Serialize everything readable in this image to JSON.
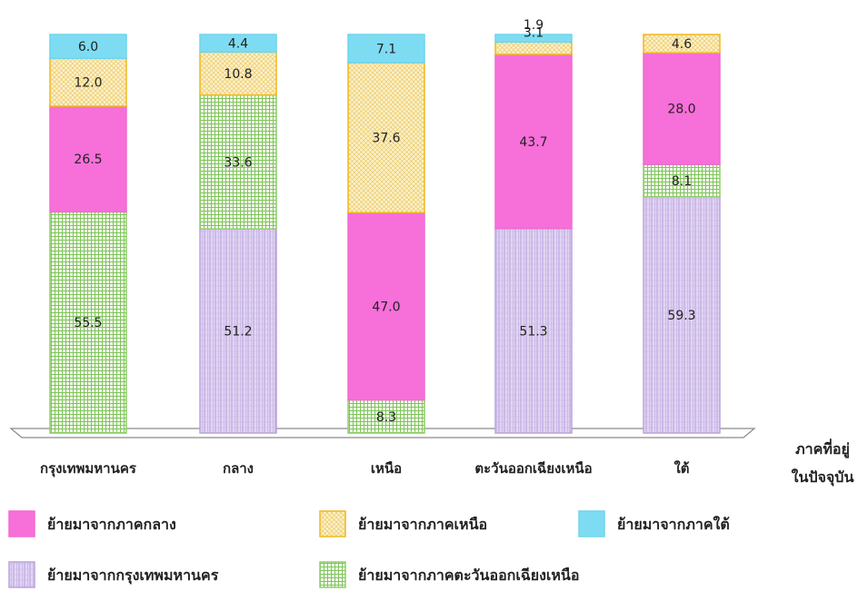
{
  "chart_data": {
    "type": "bar",
    "stacked": true,
    "categories": [
      "กรุงเทพมหานคร",
      "กลาง",
      "เหนือ",
      "ตะวันออกเฉียงเหนือ",
      "ใต้"
    ],
    "series": [
      {
        "name": "ย้ายมาจากกรุงเทพมหานคร",
        "key": "bkk",
        "color": "#d8c8ee",
        "values": [
          0,
          51.2,
          0,
          51.3,
          59.3
        ],
        "labels": [
          "",
          "51.2",
          "",
          "51.3",
          "59.3"
        ]
      },
      {
        "name": "ย้ายมาจากภาคตะวันออกเฉียงเหนือ",
        "key": "ne",
        "color": "#eef8e2",
        "values": [
          55.5,
          33.6,
          8.3,
          0,
          8.1
        ],
        "labels": [
          "55.5",
          "33.6",
          "8.3",
          "",
          "8.1"
        ]
      },
      {
        "name": "ย้ายมาจากภาคกลาง",
        "key": "central",
        "color": "#f76fd9",
        "values": [
          26.5,
          0,
          47.0,
          43.7,
          28.0
        ],
        "labels": [
          "26.5",
          "",
          "47.0",
          "43.7",
          "28.0"
        ]
      },
      {
        "name": "ย้ายมาจากภาคเหนือ",
        "key": "north",
        "color": "#fdf0bf",
        "values": [
          12.0,
          10.8,
          37.6,
          3.1,
          4.6
        ],
        "labels": [
          "12.0",
          "10.8",
          "37.6",
          "3.1",
          "4.6"
        ]
      },
      {
        "name": "ย้ายมาจากภาคใต้",
        "key": "south",
        "color": "#7edcf2",
        "values": [
          6.0,
          4.4,
          7.1,
          1.9,
          0
        ],
        "labels": [
          "6.0",
          "4.4",
          "7.1",
          "1.9",
          ""
        ]
      }
    ],
    "xlabel": [
      "ภาคที่อยู่",
      "ในปัจจุบัน"
    ],
    "ylabel": "",
    "ylim": [
      0,
      100
    ],
    "grid": false,
    "legend_position": "bottom"
  },
  "legend": {
    "order": [
      "central",
      "north",
      "south",
      "bkk",
      "ne"
    ]
  }
}
